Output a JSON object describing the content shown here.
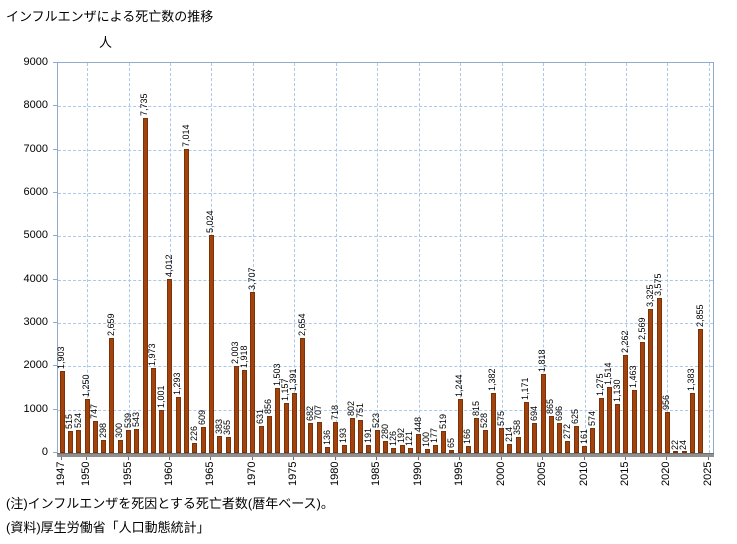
{
  "notes": [
    "(注)インフルエンザを死因とする死亡者数(暦年ベース)。",
    "(資料)厚生労働省「人口動態統計」"
  ],
  "chart_data": {
    "type": "bar",
    "title": "インフルエンザによる死亡数の推移",
    "xlabel": "",
    "ylabel": "人",
    "ylim": [
      0,
      9000
    ],
    "ytick_step": 1000,
    "grid": true,
    "legend_position": "none",
    "bar_color": "#a2420d",
    "bar_border_color": "#7c3207",
    "grid_color": "#aac8e8",
    "frame_color": "#92aacb",
    "x_domain": [
      1947,
      2025
    ],
    "x_ticks": [
      1947,
      1950,
      1955,
      1960,
      1965,
      1970,
      1975,
      1980,
      1985,
      1990,
      1995,
      2000,
      2005,
      2010,
      2015,
      2020,
      2025
    ],
    "years": [
      1947,
      1948,
      1949,
      1950,
      1951,
      1952,
      1953,
      1954,
      1955,
      1956,
      1957,
      1958,
      1959,
      1960,
      1961,
      1962,
      1963,
      1964,
      1965,
      1966,
      1967,
      1968,
      1969,
      1970,
      1971,
      1972,
      1973,
      1974,
      1975,
      1976,
      1977,
      1978,
      1979,
      1980,
      1981,
      1982,
      1983,
      1984,
      1985,
      1986,
      1987,
      1988,
      1989,
      1990,
      1991,
      1992,
      1993,
      1994,
      1995,
      1996,
      1997,
      1998,
      1999,
      2000,
      2001,
      2002,
      2003,
      2004,
      2005,
      2006,
      2007,
      2008,
      2009,
      2010,
      2011,
      2012,
      2013,
      2014,
      2015,
      2016,
      2017,
      2018,
      2019,
      2020,
      2021,
      2022,
      2023,
      2024
    ],
    "values": [
      1903,
      515,
      524,
      1250,
      747,
      298,
      2659,
      300,
      539,
      543,
      7735,
      1973,
      1001,
      4012,
      1293,
      7014,
      226,
      609,
      5024,
      383,
      365,
      2003,
      1918,
      3707,
      631,
      856,
      1503,
      1157,
      1391,
      2654,
      682,
      707,
      136,
      718,
      193,
      802,
      751,
      191,
      523,
      280,
      126,
      192,
      121,
      448,
      100,
      177,
      519,
      65,
      1244,
      166,
      815,
      528,
      1382,
      575,
      214,
      358,
      1171,
      694,
      1818,
      865,
      696,
      272,
      625,
      161,
      574,
      1275,
      1514,
      1130,
      2262,
      1463,
      2569,
      3325,
      3575,
      956,
      22,
      24,
      1383,
      2855
    ]
  }
}
